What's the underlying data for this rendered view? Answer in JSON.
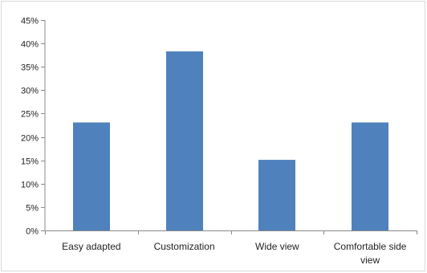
{
  "chart_data": {
    "type": "bar",
    "title": "",
    "xlabel": "",
    "ylabel": "",
    "categories": [
      "Easy adapted",
      "Customization",
      "Wide view",
      "Comfortable side view"
    ],
    "category_lines": [
      [
        "Easy adapted"
      ],
      [
        "Customization"
      ],
      [
        "Wide view"
      ],
      [
        "Comfortable side",
        "view"
      ]
    ],
    "values": [
      23.1,
      38.3,
      15.1,
      23.1
    ],
    "unit": "%",
    "ylim": [
      0,
      45
    ],
    "yticks": [
      0,
      5,
      10,
      15,
      20,
      25,
      30,
      35,
      40,
      45
    ],
    "ytick_labels": [
      "0%",
      "5%",
      "10%",
      "15%",
      "20%",
      "25%",
      "30%",
      "35%",
      "40%",
      "45%"
    ],
    "grid": false,
    "legend": "none",
    "bar_color": "#4F81BD",
    "axis_color": "#898989"
  }
}
